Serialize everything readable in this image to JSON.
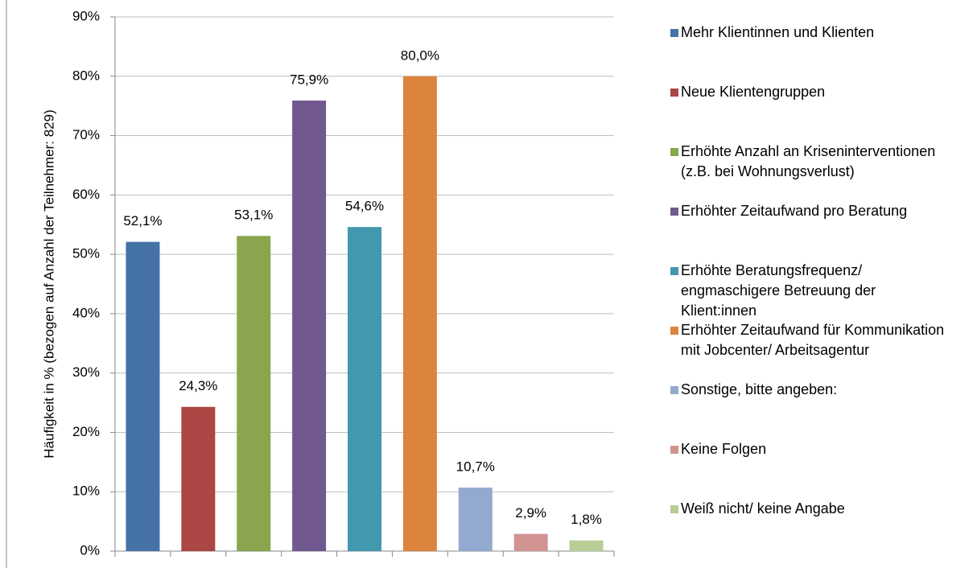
{
  "chart_data": {
    "type": "bar",
    "y_label": "Häufigkeit in % (bezogen auf Anzahl der Teilnehmer: 829)",
    "categories": [
      "Mehr Klientinnen und Klienten",
      "Neue Klientengruppen",
      "Erhöhte Anzahl an Kriseninterventionen (z.B. bei Wohnungsverlust)",
      "Erhöhter Zeitaufwand pro Beratung",
      "Erhöhte Beratungsfrequenz/ engmaschigere Betreuung der Klient:innen",
      "Erhöhter Zeitaufwand für Kommunikation mit Jobcenter/ Arbeitsagentur",
      "Sonstige, bitte angeben:",
      "Keine Folgen",
      "Weiß nicht/ keine Angabe"
    ],
    "values": [
      52.1,
      24.3,
      53.1,
      75.9,
      54.6,
      80.0,
      10.7,
      2.9,
      1.8
    ],
    "value_labels": [
      "52,1%",
      "24,3%",
      "53,1%",
      "75,9%",
      "54,6%",
      "80,0%",
      "10,7%",
      "2,9%",
      "1,8%"
    ],
    "colors": [
      "#4572a7",
      "#aa4643",
      "#89a54e",
      "#71588f",
      "#4198af",
      "#db843d",
      "#93a9cf",
      "#d19392",
      "#b9cd96"
    ],
    "ylim": [
      0,
      90
    ],
    "yticks": [
      {
        "value": 0,
        "label": "0%"
      },
      {
        "value": 10,
        "label": "10%"
      },
      {
        "value": 20,
        "label": "20%"
      },
      {
        "value": 30,
        "label": "30%"
      },
      {
        "value": 40,
        "label": "40%"
      },
      {
        "value": 50,
        "label": "50%"
      },
      {
        "value": 60,
        "label": "60%"
      },
      {
        "value": 70,
        "label": "70%"
      },
      {
        "value": 80,
        "label": "80%"
      },
      {
        "value": 90,
        "label": "90%"
      }
    ],
    "grid": true,
    "legend": "right"
  }
}
